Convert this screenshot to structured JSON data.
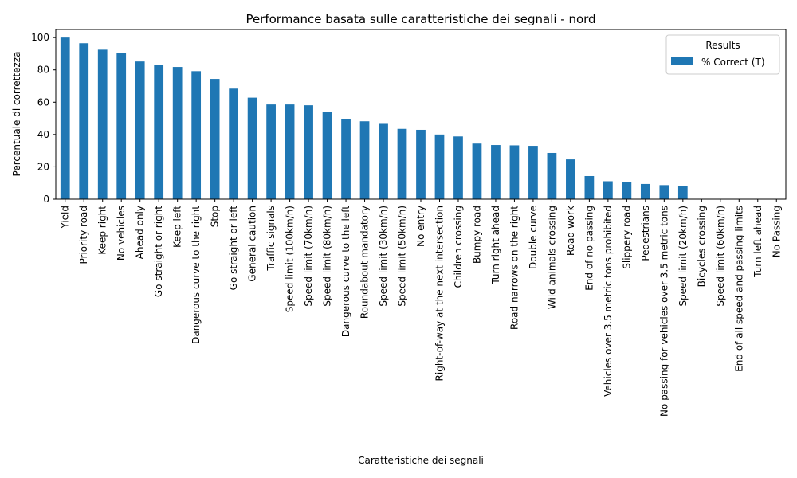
{
  "chart_data": {
    "type": "bar",
    "title": "Performance basata sulle caratteristiche dei segnali - nord",
    "xlabel": "Caratteristiche dei segnali",
    "ylabel": "Percentuale di correttezza",
    "ylim": [
      0,
      105
    ],
    "yticks": [
      0,
      20,
      40,
      60,
      80,
      100
    ],
    "grid": false,
    "legend": {
      "title": "Results",
      "placement": "top-right",
      "entries": [
        "% Correct (T)"
      ]
    },
    "bar_color": "#1f77b4",
    "categories": [
      "Yield",
      "Priority road",
      "Keep right",
      "No vehicles",
      "Ahead only",
      "Go straight or right",
      "Keep left",
      "Dangerous curve to the right",
      "Stop",
      "Go straight or left",
      "General caution",
      "Traffic signals",
      "Speed limit (100km/h)",
      "Speed limit (70km/h)",
      "Speed limit (80km/h)",
      "Dangerous curve to the left",
      "Roundabout mandatory",
      "Speed limit (30km/h)",
      "Speed limit (50km/h)",
      "No entry",
      "Right-of-way at the next intersection",
      "Children crossing",
      "Bumpy road",
      "Turn right ahead",
      "Road narrows on the right",
      "Double curve",
      "Wild animals crossing",
      "Road work",
      "End of no passing",
      "Vehicles over 3.5 metric tons prohibited",
      "Slippery road",
      "Pedestrians",
      "No passing for vehicles over 3.5 metric tons",
      "Speed limit (20km/h)",
      "Bicycles crossing",
      "Speed limit (60km/h)",
      "End of all speed and passing limits",
      "Turn left ahead",
      "No Passing"
    ],
    "series": [
      {
        "name": "% Correct (T)",
        "values": [
          100,
          96.5,
          92.5,
          90.5,
          85.2,
          83.3,
          81.8,
          79.2,
          74.4,
          68.4,
          62.8,
          58.6,
          58.6,
          58.1,
          54.2,
          49.7,
          48.2,
          46.6,
          43.5,
          42.9,
          40.0,
          38.8,
          34.4,
          33.5,
          33.3,
          33.0,
          28.6,
          24.6,
          14.3,
          11.1,
          10.8,
          9.4,
          8.7,
          8.3,
          0,
          0,
          0,
          0,
          0
        ]
      }
    ]
  }
}
